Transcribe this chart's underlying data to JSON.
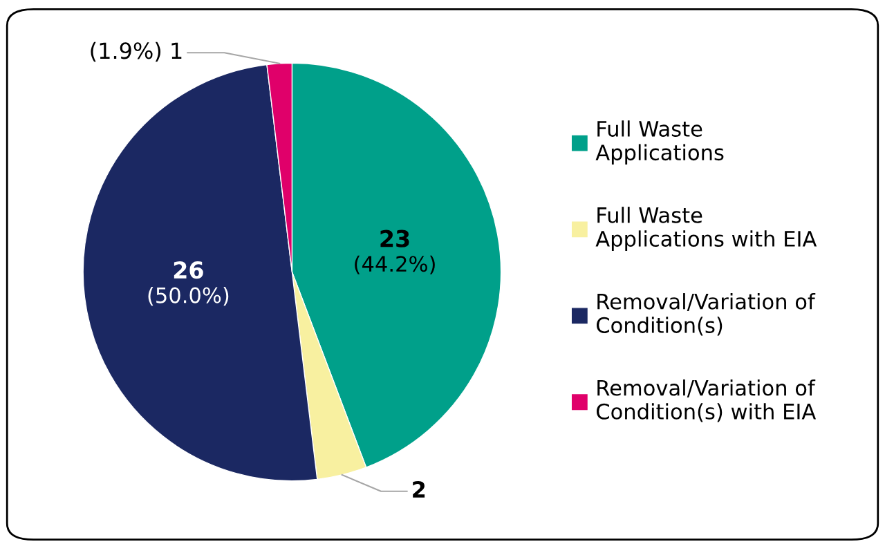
{
  "chart_data": {
    "type": "pie",
    "categories": [
      "Full Waste Applications",
      "Full Waste Applications with EIA",
      "Removal/Variation of Condition(s)",
      "Removal/Variation of Condition(s) with EIA"
    ],
    "values": [
      23,
      2,
      26,
      1
    ],
    "colors": [
      "#00a08a",
      "#f8f0a0",
      "#1b2862",
      "#e0006a"
    ],
    "value_labels": [
      "23\n(44.2%)",
      "2",
      "26\n(50.0%)",
      "(1.9%) 1"
    ],
    "legend": "right"
  }
}
